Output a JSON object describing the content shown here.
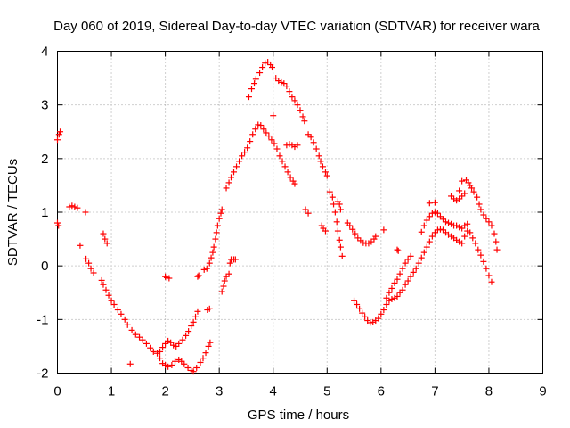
{
  "chart_data": {
    "type": "scatter",
    "title": "Day 060 of 2019, Sidereal Day-to-day VTEC variation (SDTVAR) for receiver wara",
    "xlabel": "GPS time / hours",
    "ylabel": "SDTVAR / TECUs",
    "xlim": [
      0,
      9
    ],
    "ylim": [
      -2,
      4
    ],
    "x_ticks": [
      "0",
      "1",
      "2",
      "3",
      "4",
      "5",
      "6",
      "7",
      "8",
      "9"
    ],
    "y_ticks": [
      "-2",
      "-1",
      "0",
      "1",
      "2",
      "3",
      "4"
    ],
    "grid": true,
    "marker": "plus",
    "color": "#ff0000",
    "series": [
      {
        "points": [
          [
            0.0,
            0.8
          ],
          [
            0.02,
            0.75
          ],
          [
            0.0,
            2.35
          ],
          [
            0.03,
            2.45
          ],
          [
            0.05,
            2.5
          ],
          [
            0.22,
            1.1
          ],
          [
            0.27,
            1.12
          ],
          [
            0.32,
            1.1
          ],
          [
            0.37,
            1.08
          ],
          [
            0.42,
            0.38
          ],
          [
            0.52,
            1.0
          ],
          [
            0.53,
            0.13
          ],
          [
            0.58,
            0.05
          ],
          [
            0.62,
            -0.05
          ],
          [
            0.67,
            -0.13
          ],
          [
            0.85,
            0.6
          ],
          [
            0.88,
            0.5
          ],
          [
            0.92,
            0.42
          ],
          [
            0.82,
            -0.27
          ],
          [
            0.85,
            -0.35
          ],
          [
            0.9,
            -0.45
          ],
          [
            0.95,
            -0.55
          ],
          [
            1.0,
            -0.65
          ],
          [
            1.05,
            -0.72
          ],
          [
            1.12,
            -0.82
          ],
          [
            1.18,
            -0.9
          ],
          [
            1.25,
            -1.0
          ],
          [
            1.3,
            -1.1
          ],
          [
            1.38,
            -1.2
          ],
          [
            1.45,
            -1.28
          ],
          [
            1.52,
            -1.33
          ],
          [
            1.58,
            -1.38
          ],
          [
            1.35,
            -1.83
          ],
          [
            1.65,
            -1.45
          ],
          [
            1.72,
            -1.53
          ],
          [
            1.78,
            -1.6
          ],
          [
            1.85,
            -1.63
          ],
          [
            1.9,
            -1.6
          ],
          [
            1.95,
            -1.52
          ],
          [
            2.0,
            -1.45
          ],
          [
            2.05,
            -1.4
          ],
          [
            2.1,
            -1.43
          ],
          [
            2.15,
            -1.48
          ],
          [
            2.2,
            -1.5
          ],
          [
            2.25,
            -1.45
          ],
          [
            2.32,
            -1.38
          ],
          [
            2.38,
            -1.3
          ],
          [
            2.43,
            -1.22
          ],
          [
            2.48,
            -1.12
          ],
          [
            2.52,
            -1.05
          ],
          [
            2.56,
            -0.95
          ],
          [
            2.6,
            -0.85
          ],
          [
            1.9,
            -1.72
          ],
          [
            1.95,
            -1.82
          ],
          [
            2.0,
            -1.85
          ],
          [
            2.05,
            -1.88
          ],
          [
            2.12,
            -1.85
          ],
          [
            2.18,
            -1.78
          ],
          [
            2.25,
            -1.75
          ],
          [
            2.3,
            -1.78
          ],
          [
            2.35,
            -1.83
          ],
          [
            2.42,
            -1.9
          ],
          [
            2.48,
            -1.95
          ],
          [
            2.52,
            -1.97
          ],
          [
            2.58,
            -1.9
          ],
          [
            2.65,
            -1.8
          ],
          [
            2.7,
            -1.72
          ],
          [
            2.75,
            -1.62
          ],
          [
            2.8,
            -1.5
          ],
          [
            2.83,
            -1.43
          ],
          [
            2.0,
            -0.2
          ],
          [
            2.03,
            -0.22
          ],
          [
            2.07,
            -0.23
          ],
          [
            2.6,
            -0.2
          ],
          [
            2.62,
            -0.18
          ],
          [
            2.72,
            -0.07
          ],
          [
            2.77,
            -0.05
          ],
          [
            2.78,
            -0.82
          ],
          [
            2.82,
            -0.8
          ],
          [
            2.82,
            0.05
          ],
          [
            2.85,
            0.15
          ],
          [
            2.88,
            0.25
          ],
          [
            2.9,
            0.35
          ],
          [
            2.93,
            0.5
          ],
          [
            2.95,
            0.62
          ],
          [
            2.97,
            0.75
          ],
          [
            3.0,
            0.88
          ],
          [
            3.03,
            0.98
          ],
          [
            3.05,
            1.05
          ],
          [
            3.05,
            -0.48
          ],
          [
            3.08,
            -0.38
          ],
          [
            3.1,
            -0.28
          ],
          [
            3.13,
            -0.2
          ],
          [
            3.18,
            -0.15
          ],
          [
            3.2,
            0.05
          ],
          [
            3.22,
            0.12
          ],
          [
            3.27,
            0.12
          ],
          [
            3.3,
            0.12
          ],
          [
            3.13,
            1.45
          ],
          [
            3.18,
            1.55
          ],
          [
            3.22,
            1.65
          ],
          [
            3.27,
            1.75
          ],
          [
            3.32,
            1.85
          ],
          [
            3.37,
            1.95
          ],
          [
            3.42,
            2.05
          ],
          [
            3.47,
            2.12
          ],
          [
            3.52,
            2.2
          ],
          [
            3.57,
            2.32
          ],
          [
            3.62,
            2.45
          ],
          [
            3.67,
            2.55
          ],
          [
            3.72,
            2.63
          ],
          [
            3.77,
            2.62
          ],
          [
            3.82,
            2.55
          ],
          [
            3.87,
            2.48
          ],
          [
            3.92,
            2.42
          ],
          [
            3.97,
            2.35
          ],
          [
            4.02,
            2.28
          ],
          [
            4.07,
            2.18
          ],
          [
            4.12,
            2.05
          ],
          [
            4.17,
            1.95
          ],
          [
            4.22,
            1.85
          ],
          [
            4.27,
            1.75
          ],
          [
            4.32,
            1.65
          ],
          [
            4.37,
            1.58
          ],
          [
            4.4,
            1.53
          ],
          [
            3.55,
            3.15
          ],
          [
            3.6,
            3.3
          ],
          [
            3.65,
            3.4
          ],
          [
            3.68,
            3.48
          ],
          [
            3.75,
            3.6
          ],
          [
            3.8,
            3.7
          ],
          [
            3.85,
            3.78
          ],
          [
            3.9,
            3.8
          ],
          [
            3.95,
            3.75
          ],
          [
            3.98,
            3.7
          ],
          [
            4.05,
            3.5
          ],
          [
            4.1,
            3.45
          ],
          [
            4.15,
            3.42
          ],
          [
            4.2,
            3.4
          ],
          [
            4.25,
            3.35
          ],
          [
            4.3,
            3.25
          ],
          [
            4.35,
            3.15
          ],
          [
            4.4,
            3.08
          ],
          [
            4.45,
            3.0
          ],
          [
            4.5,
            2.9
          ],
          [
            4.55,
            2.78
          ],
          [
            4.58,
            2.7
          ],
          [
            4.0,
            2.8
          ],
          [
            4.25,
            2.25
          ],
          [
            4.3,
            2.27
          ],
          [
            4.35,
            2.25
          ],
          [
            4.4,
            2.22
          ],
          [
            4.45,
            2.25
          ],
          [
            4.6,
            1.05
          ],
          [
            4.65,
            0.98
          ],
          [
            4.65,
            2.45
          ],
          [
            4.7,
            2.4
          ],
          [
            4.75,
            2.3
          ],
          [
            4.8,
            2.18
          ],
          [
            4.85,
            2.05
          ],
          [
            4.88,
            1.95
          ],
          [
            4.92,
            1.85
          ],
          [
            4.97,
            1.75
          ],
          [
            5.0,
            1.68
          ],
          [
            4.9,
            0.75
          ],
          [
            4.93,
            0.7
          ],
          [
            4.97,
            0.65
          ],
          [
            5.05,
            1.38
          ],
          [
            5.1,
            1.28
          ],
          [
            5.12,
            1.15
          ],
          [
            5.15,
            1.0
          ],
          [
            5.18,
            0.82
          ],
          [
            5.2,
            0.65
          ],
          [
            5.23,
            0.48
          ],
          [
            5.25,
            0.35
          ],
          [
            5.28,
            0.18
          ],
          [
            5.2,
            1.2
          ],
          [
            5.23,
            1.15
          ],
          [
            5.25,
            1.05
          ],
          [
            5.38,
            0.8
          ],
          [
            5.42,
            0.75
          ],
          [
            5.47,
            0.68
          ],
          [
            5.52,
            0.6
          ],
          [
            5.57,
            0.52
          ],
          [
            5.62,
            0.47
          ],
          [
            5.67,
            0.43
          ],
          [
            5.72,
            0.42
          ],
          [
            5.77,
            0.42
          ],
          [
            5.82,
            0.45
          ],
          [
            5.87,
            0.5
          ],
          [
            5.9,
            0.55
          ],
          [
            6.05,
            0.67
          ],
          [
            5.5,
            -0.65
          ],
          [
            5.55,
            -0.72
          ],
          [
            5.6,
            -0.8
          ],
          [
            5.65,
            -0.88
          ],
          [
            5.7,
            -0.95
          ],
          [
            5.75,
            -1.02
          ],
          [
            5.8,
            -1.06
          ],
          [
            5.85,
            -1.05
          ],
          [
            5.9,
            -1.02
          ],
          [
            5.95,
            -0.98
          ],
          [
            6.0,
            -0.9
          ],
          [
            6.05,
            -0.82
          ],
          [
            6.1,
            -0.72
          ],
          [
            6.15,
            -0.65
          ],
          [
            6.2,
            -0.62
          ],
          [
            6.25,
            -0.6
          ],
          [
            6.3,
            -0.57
          ],
          [
            6.35,
            -0.5
          ],
          [
            6.4,
            -0.45
          ],
          [
            6.1,
            -0.6
          ],
          [
            6.15,
            -0.5
          ],
          [
            6.2,
            -0.42
          ],
          [
            6.25,
            -0.32
          ],
          [
            6.3,
            -0.25
          ],
          [
            6.35,
            -0.15
          ],
          [
            6.4,
            -0.05
          ],
          [
            6.45,
            0.05
          ],
          [
            6.5,
            0.12
          ],
          [
            6.55,
            0.18
          ],
          [
            6.3,
            0.3
          ],
          [
            6.32,
            0.28
          ],
          [
            6.75,
            0.63
          ],
          [
            6.9,
            1.17
          ],
          [
            6.45,
            -0.35
          ],
          [
            6.5,
            -0.28
          ],
          [
            6.55,
            -0.2
          ],
          [
            6.6,
            -0.12
          ],
          [
            6.65,
            -0.05
          ],
          [
            6.7,
            0.05
          ],
          [
            6.75,
            0.15
          ],
          [
            6.8,
            0.25
          ],
          [
            6.85,
            0.35
          ],
          [
            6.9,
            0.45
          ],
          [
            6.95,
            0.55
          ],
          [
            7.0,
            0.62
          ],
          [
            7.05,
            0.67
          ],
          [
            7.1,
            0.68
          ],
          [
            7.15,
            0.67
          ],
          [
            7.2,
            0.62
          ],
          [
            7.25,
            0.58
          ],
          [
            7.3,
            0.55
          ],
          [
            7.35,
            0.52
          ],
          [
            7.4,
            0.48
          ],
          [
            7.45,
            0.45
          ],
          [
            7.5,
            0.42
          ],
          [
            7.55,
            0.55
          ],
          [
            7.6,
            0.65
          ],
          [
            7.65,
            0.62
          ],
          [
            7.7,
            0.52
          ],
          [
            7.75,
            0.42
          ],
          [
            7.8,
            0.3
          ],
          [
            7.85,
            0.2
          ],
          [
            7.9,
            0.08
          ],
          [
            7.95,
            -0.05
          ],
          [
            8.0,
            -0.18
          ],
          [
            8.05,
            -0.3
          ],
          [
            6.8,
            0.75
          ],
          [
            6.85,
            0.85
          ],
          [
            6.9,
            0.92
          ],
          [
            6.95,
            0.98
          ],
          [
            7.0,
            1.0
          ],
          [
            7.05,
            0.98
          ],
          [
            7.1,
            0.92
          ],
          [
            7.15,
            0.87
          ],
          [
            7.2,
            0.82
          ],
          [
            7.25,
            0.8
          ],
          [
            7.3,
            0.78
          ],
          [
            7.35,
            0.75
          ],
          [
            7.4,
            0.75
          ],
          [
            7.45,
            0.72
          ],
          [
            7.5,
            0.7
          ],
          [
            7.55,
            0.75
          ],
          [
            7.6,
            0.78
          ],
          [
            7.0,
            1.18
          ],
          [
            7.3,
            1.3
          ],
          [
            7.35,
            1.25
          ],
          [
            7.4,
            1.22
          ],
          [
            7.45,
            1.25
          ],
          [
            7.5,
            1.3
          ],
          [
            7.55,
            1.35
          ],
          [
            7.58,
            1.6
          ],
          [
            7.62,
            1.55
          ],
          [
            7.65,
            1.5
          ],
          [
            7.68,
            1.45
          ],
          [
            7.72,
            1.38
          ],
          [
            7.78,
            1.28
          ],
          [
            7.82,
            1.15
          ],
          [
            7.85,
            1.05
          ],
          [
            7.9,
            0.95
          ],
          [
            7.95,
            0.88
          ],
          [
            8.0,
            0.82
          ],
          [
            8.05,
            0.75
          ],
          [
            8.1,
            0.6
          ],
          [
            8.13,
            0.45
          ],
          [
            8.15,
            0.3
          ],
          [
            7.45,
            1.4
          ],
          [
            7.5,
            1.58
          ]
        ]
      }
    ]
  }
}
